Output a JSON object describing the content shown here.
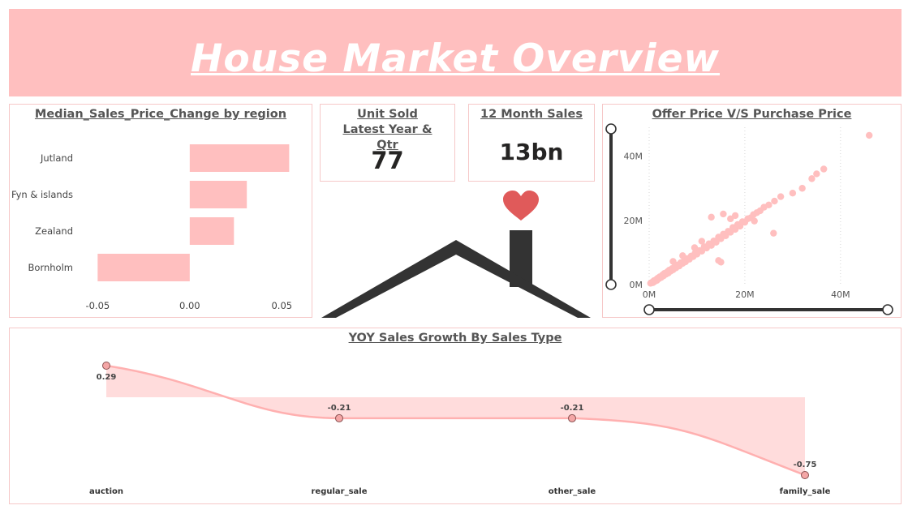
{
  "banner": {
    "title": "House Market Overview"
  },
  "bar_card": {
    "title": "Median_Sales_Price_Change by region"
  },
  "kpi_units": {
    "title": "Unit Sold Latest Year & Qtr",
    "value": "77"
  },
  "kpi_sales": {
    "title": "12 Month Sales",
    "value": "13bn"
  },
  "scatter_card": {
    "title": "Offer Price V/S Purchase Price"
  },
  "line_card": {
    "title": "YOY Sales Growth By Sales Type"
  },
  "colors": {
    "accent": "#ffbfbf",
    "heart": "#e05a5a",
    "house": "#333333",
    "title_text": "#555555"
  },
  "icons": {
    "illustration": "house-roof-heart-icon"
  },
  "chart_data": [
    {
      "type": "bar",
      "orientation": "horizontal",
      "title": "Median_Sales_Price_Change by region",
      "categories": [
        "Jutland",
        "Fyn & islands",
        "Zealand",
        "Bornholm"
      ],
      "values": [
        0.054,
        0.031,
        0.024,
        -0.05
      ],
      "xticks": [
        "-0.05",
        "0.00",
        "0.05"
      ],
      "xlim": [
        -0.055,
        0.06
      ],
      "color": "#ffbfbf"
    },
    {
      "type": "scatter",
      "title": "Offer Price V/S Purchase Price",
      "xticks": [
        "0M",
        "20M",
        "40M"
      ],
      "yticks": [
        "0M",
        "20M",
        "40M"
      ],
      "xlim": [
        0,
        48
      ],
      "ylim": [
        0,
        48
      ],
      "units": "M",
      "grid": "vertical dotted",
      "color": "#ffbfbf",
      "points": [
        [
          0.3,
          0.4
        ],
        [
          0.6,
          0.7
        ],
        [
          0.8,
          0.6
        ],
        [
          1.0,
          1.2
        ],
        [
          1.2,
          1.0
        ],
        [
          1.4,
          1.5
        ],
        [
          1.6,
          1.3
        ],
        [
          1.8,
          2.0
        ],
        [
          2.0,
          1.8
        ],
        [
          2.2,
          2.4
        ],
        [
          2.5,
          2.2
        ],
        [
          2.8,
          3.0
        ],
        [
          3.0,
          2.7
        ],
        [
          3.2,
          3.5
        ],
        [
          3.5,
          3.2
        ],
        [
          3.8,
          4.0
        ],
        [
          4.0,
          3.6
        ],
        [
          4.2,
          4.5
        ],
        [
          4.5,
          4.2
        ],
        [
          4.8,
          5.0
        ],
        [
          5.0,
          4.6
        ],
        [
          5.3,
          5.4
        ],
        [
          5.6,
          5.2
        ],
        [
          6.0,
          6.1
        ],
        [
          6.3,
          5.8
        ],
        [
          6.6,
          6.8
        ],
        [
          7.0,
          6.6
        ],
        [
          7.3,
          7.4
        ],
        [
          7.6,
          7.1
        ],
        [
          8.0,
          8.1
        ],
        [
          8.4,
          7.9
        ],
        [
          8.8,
          8.9
        ],
        [
          9.2,
          8.7
        ],
        [
          9.6,
          9.8
        ],
        [
          10.0,
          9.5
        ],
        [
          10.5,
          10.6
        ],
        [
          11.0,
          10.4
        ],
        [
          11.5,
          11.8
        ],
        [
          12.0,
          11.4
        ],
        [
          12.5,
          12.7
        ],
        [
          13.0,
          12.2
        ],
        [
          13.5,
          13.6
        ],
        [
          14.0,
          13.2
        ],
        [
          14.5,
          14.8
        ],
        [
          15.0,
          14.3
        ],
        [
          15.5,
          15.7
        ],
        [
          16.0,
          15.2
        ],
        [
          16.5,
          16.6
        ],
        [
          17.0,
          16.3
        ],
        [
          17.5,
          17.8
        ],
        [
          18.0,
          17.2
        ],
        [
          18.5,
          18.7
        ],
        [
          19.0,
          18.2
        ],
        [
          19.5,
          19.6
        ],
        [
          20.0,
          19.4
        ],
        [
          20.6,
          20.5
        ],
        [
          21.2,
          20.8
        ],
        [
          21.8,
          21.8
        ],
        [
          22.5,
          22.4
        ],
        [
          23.2,
          23.0
        ],
        [
          24.0,
          24.1
        ],
        [
          25.0,
          24.8
        ],
        [
          26.2,
          26.0
        ],
        [
          27.5,
          27.4
        ],
        [
          13.0,
          21.0
        ],
        [
          15.5,
          22.0
        ],
        [
          17.0,
          20.5
        ],
        [
          18.0,
          21.5
        ],
        [
          26.0,
          16.0
        ],
        [
          14.5,
          7.5
        ],
        [
          15.0,
          7.0
        ],
        [
          22.0,
          19.8
        ],
        [
          30.0,
          28.5
        ],
        [
          32.0,
          30.0
        ],
        [
          34.0,
          33.0
        ],
        [
          35.0,
          34.5
        ],
        [
          36.5,
          36.0
        ],
        [
          46.0,
          46.5
        ],
        [
          9.5,
          11.5
        ],
        [
          11.0,
          13.5
        ],
        [
          7.0,
          9.0
        ],
        [
          5.0,
          7.2
        ]
      ]
    },
    {
      "type": "area",
      "title": "YOY Sales Growth By Sales Type",
      "categories": [
        "auction",
        "regular_sale",
        "other_sale",
        "family_sale"
      ],
      "values": [
        0.29,
        -0.21,
        -0.21,
        -0.75
      ],
      "labels": [
        "0.29",
        "-0.21",
        "-0.21",
        "-0.75"
      ],
      "color": "#ffbfbf"
    }
  ]
}
